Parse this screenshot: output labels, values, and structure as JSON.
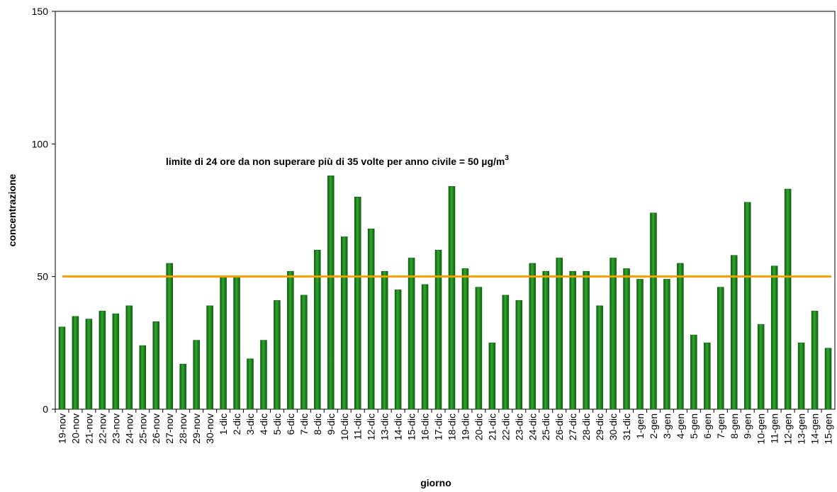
{
  "chart_data": {
    "type": "bar",
    "x_label": "giorno",
    "y_label": "concentrazione",
    "annotation": {
      "text": "limite di 24 ore da non superare più di 35 volte per anno civile = 50 µg/m",
      "superscript": "3"
    },
    "threshold": 50,
    "threshold_color": "#f5a000",
    "color": "#1f8a1f",
    "ylim": [
      0,
      150
    ],
    "yticks": [
      0,
      50,
      100,
      150
    ],
    "categories": [
      "19-nov",
      "20-nov",
      "21-nov",
      "22-nov",
      "23-nov",
      "24-nov",
      "25-nov",
      "26-nov",
      "27-nov",
      "28-nov",
      "29-nov",
      "30-nov",
      "1-dic",
      "2-dic",
      "3-dic",
      "4-dic",
      "5-dic",
      "6-dic",
      "7-dic",
      "8-dic",
      "9-dic",
      "10-dic",
      "11-dic",
      "12-dic",
      "13-dic",
      "14-dic",
      "15-dic",
      "16-dic",
      "17-dic",
      "18-dic",
      "19-dic",
      "20-dic",
      "21-dic",
      "22-dic",
      "23-dic",
      "24-dic",
      "25-dic",
      "26-dic",
      "27-dic",
      "28-dic",
      "29-dic",
      "30-dic",
      "31-dic",
      "1-gen",
      "2-gen",
      "3-gen",
      "4-gen",
      "5-gen",
      "6-gen",
      "7-gen",
      "8-gen",
      "9-gen",
      "10-gen",
      "11-gen",
      "12-gen",
      "13-gen",
      "14-gen",
      "15-gen"
    ],
    "values": [
      31,
      35,
      34,
      37,
      36,
      39,
      24,
      33,
      55,
      17,
      26,
      39,
      50,
      50,
      19,
      26,
      41,
      52,
      43,
      60,
      88,
      65,
      80,
      68,
      52,
      45,
      57,
      47,
      60,
      84,
      53,
      46,
      25,
      43,
      41,
      55,
      52,
      57,
      52,
      52,
      39,
      57,
      53,
      49,
      74,
      49,
      55,
      28,
      25,
      46,
      58,
      78,
      32,
      54,
      83,
      25,
      37,
      23
    ]
  }
}
